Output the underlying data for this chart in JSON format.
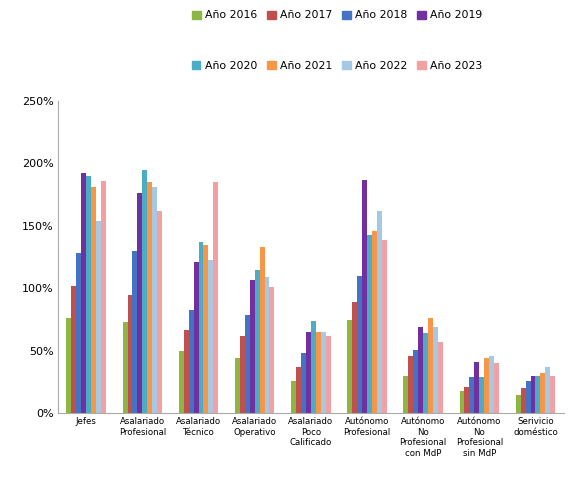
{
  "categories": [
    "Jefes",
    "Asalariado\nProfesional",
    "Asalariado\nTécnico",
    "Asalariado\nOperativo",
    "Asalariado\nPoco\nCalificado",
    "Autónomo\nProfesional",
    "Autónomo\nNo\nProfesional\ncon MdP",
    "Autónomo\nNo\nProfesional\nsin MdP",
    "Serivicio\ndoméstico"
  ],
  "years": [
    "Año 2016",
    "Año 2017",
    "Año 2018",
    "Año 2019",
    "Año 2020",
    "Año 2021",
    "Año 2022",
    "Año 2023"
  ],
  "colors": [
    "#8db645",
    "#c0504d",
    "#4472c4",
    "#7030a0",
    "#4bacc6",
    "#f79646",
    "#a5c8e4",
    "#f2a0a1"
  ],
  "data": {
    "Año 2016": [
      0.76,
      0.73,
      0.5,
      0.44,
      0.26,
      0.75,
      0.3,
      0.18,
      0.15
    ],
    "Año 2017": [
      1.02,
      0.95,
      0.67,
      0.62,
      0.37,
      0.89,
      0.46,
      0.21,
      0.2
    ],
    "Año 2018": [
      1.28,
      1.3,
      0.83,
      0.79,
      0.48,
      1.1,
      0.51,
      0.29,
      0.26
    ],
    "Año 2019": [
      1.92,
      1.76,
      1.21,
      1.07,
      0.65,
      1.87,
      0.69,
      0.41,
      0.3
    ],
    "Año 2020": [
      1.9,
      1.95,
      1.37,
      1.15,
      0.74,
      1.43,
      0.64,
      0.29,
      0.3
    ],
    "Año 2021": [
      1.81,
      1.85,
      1.35,
      1.33,
      0.65,
      1.46,
      0.76,
      0.44,
      0.32
    ],
    "Año 2022": [
      1.54,
      1.81,
      1.23,
      1.09,
      0.65,
      1.62,
      0.69,
      0.46,
      0.37
    ],
    "Año 2023": [
      1.86,
      1.62,
      1.85,
      1.01,
      0.62,
      1.39,
      0.57,
      0.4,
      0.3
    ]
  },
  "ylim": [
    0,
    2.5
  ],
  "yticks": [
    0.0,
    0.5,
    1.0,
    1.5,
    2.0,
    2.5
  ],
  "ytick_labels": [
    "0%",
    "50%",
    "100%",
    "150%",
    "200%",
    "250%"
  ],
  "legend_row1": [
    "Año 2016",
    "Año 2017",
    "Año 2018",
    "Año 2019"
  ],
  "legend_row2": [
    "Año 2020",
    "Año 2021",
    "Año 2022",
    "Año 2023"
  ],
  "bar_width": 0.088
}
